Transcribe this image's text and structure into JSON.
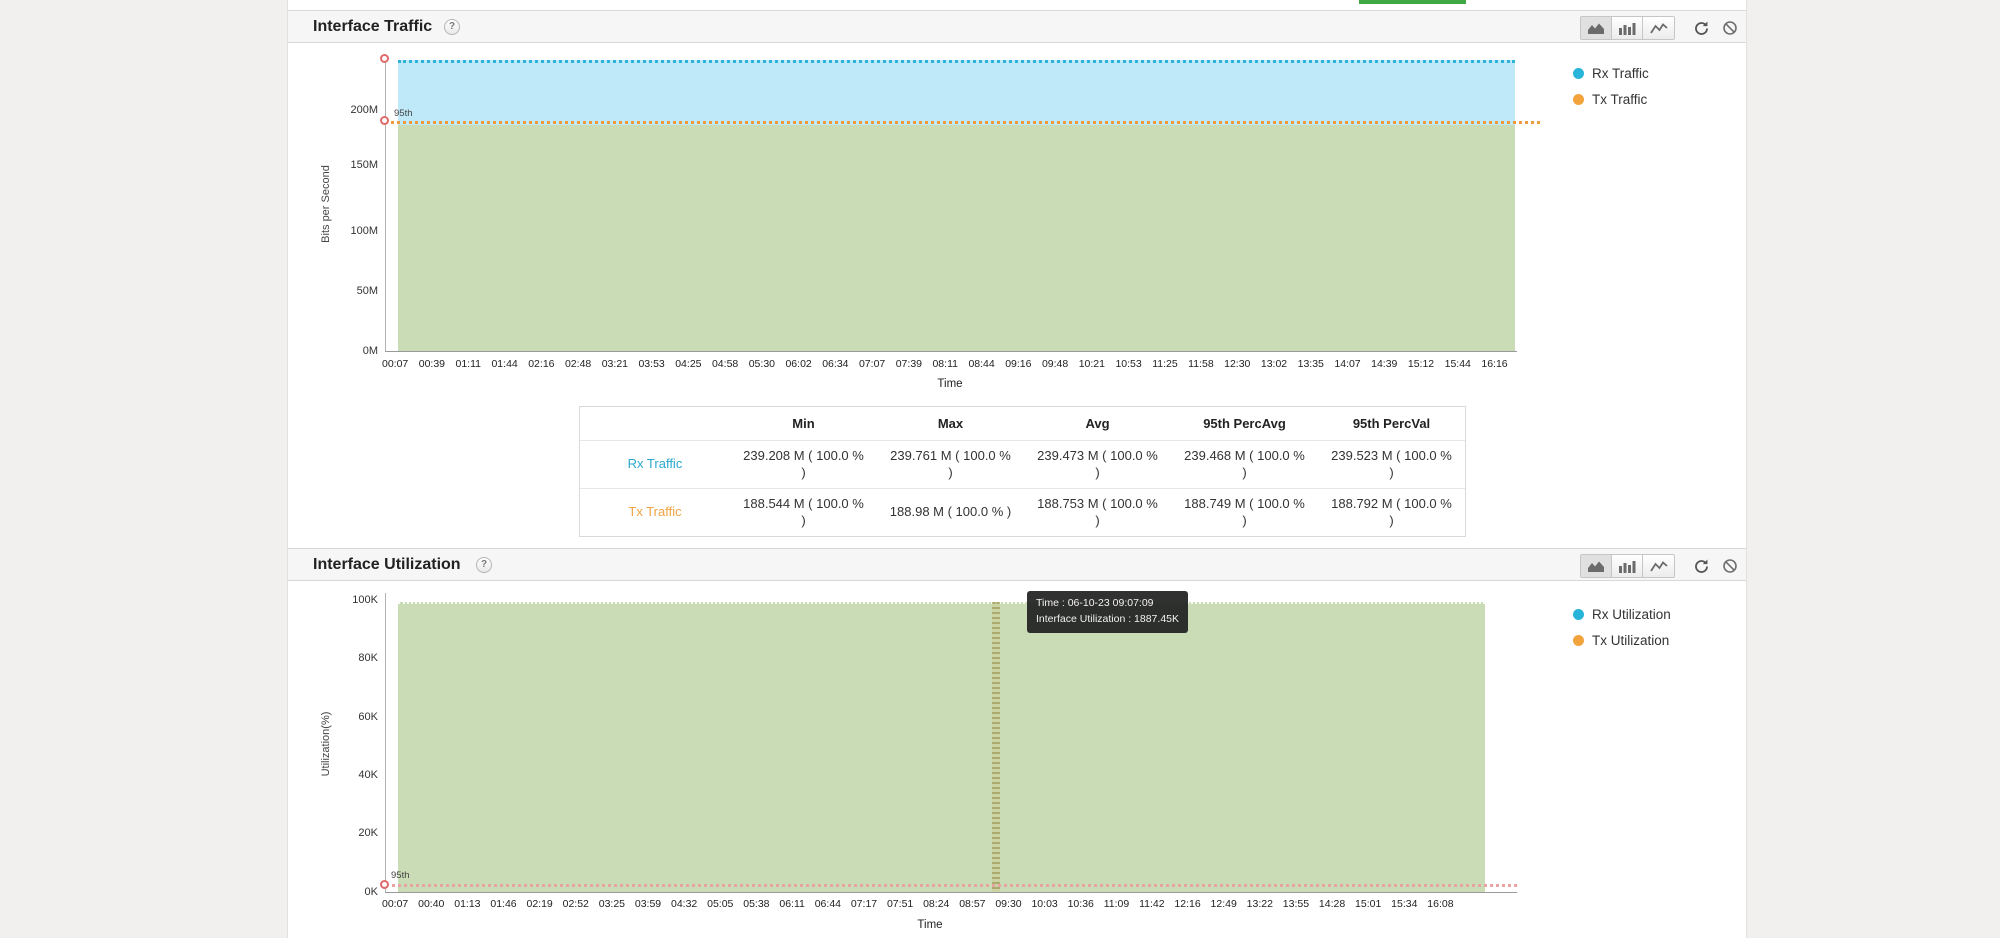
{
  "accent": {
    "top_tab_indicator_color": "#3fa845"
  },
  "toolbar": {
    "icons": [
      "area-chart-icon",
      "bar-chart-icon",
      "line-chart-icon",
      "refresh-icon",
      "cancel-icon"
    ],
    "selected_chart_type": "area"
  },
  "traffic_panel": {
    "title": "Interface Traffic",
    "help_label": "?",
    "percentile_label": "95th",
    "legend": [
      {
        "label": "Rx Traffic",
        "color": "#29b5da"
      },
      {
        "label": "Tx Traffic",
        "color": "#f2a33c"
      }
    ],
    "chart_data": {
      "type": "area",
      "title": "Interface Traffic",
      "xlabel": "Time",
      "ylabel": "Bits per Second",
      "y_ticks": [
        "200M",
        "150M",
        "100M",
        "50M",
        "0M"
      ],
      "ylim": [
        0,
        245000000
      ],
      "x_ticks": [
        "00:07",
        "00:39",
        "01:11",
        "01:44",
        "02:16",
        "02:48",
        "03:21",
        "03:53",
        "04:25",
        "04:58",
        "05:30",
        "06:02",
        "06:34",
        "07:07",
        "07:39",
        "08:11",
        "08:44",
        "09:16",
        "09:48",
        "10:21",
        "10:53",
        "11:25",
        "11:58",
        "12:30",
        "13:02",
        "13:35",
        "14:07",
        "14:39",
        "15:12",
        "15:44",
        "16:16"
      ],
      "series": [
        {
          "name": "Rx Traffic",
          "color": "#29b5da",
          "shape": "flat",
          "approx_value": "239.47M bps"
        },
        {
          "name": "Tx Traffic",
          "color": "#f2a33c",
          "shape": "flat",
          "approx_value": "188.75M bps"
        }
      ],
      "percentile_marker": "95th",
      "legend_position": "right",
      "grid": false
    },
    "stats_table": {
      "columns": [
        "",
        "Min",
        "Max",
        "Avg",
        "95th PercAvg",
        "95th PercVal"
      ],
      "rows": [
        {
          "label": "Rx Traffic",
          "values": [
            "239.208 M ( 100.0 % )",
            "239.761 M ( 100.0 % )",
            "239.473 M ( 100.0 % )",
            "239.468 M ( 100.0 % )",
            "239.523 M ( 100.0 % )"
          ]
        },
        {
          "label": "Tx Traffic",
          "values": [
            "188.544 M ( 100.0 % )",
            "188.98 M ( 100.0 % )",
            "188.753 M ( 100.0 % )",
            "188.749 M ( 100.0 % )",
            "188.792 M ( 100.0 % )"
          ]
        }
      ]
    }
  },
  "utilization_panel": {
    "title": "Interface Utilization",
    "help_label": "?",
    "percentile_label": "95th",
    "legend": [
      {
        "label": "Rx Utilization",
        "color": "#29b5da"
      },
      {
        "label": "Tx Utilization",
        "color": "#f2a33c"
      }
    ],
    "tooltip": {
      "time_line": "Time : 06-10-23 09:07:09",
      "value_line": "Interface Utilization : 1887.45K"
    },
    "chart_data": {
      "type": "area",
      "title": "Interface Utilization",
      "xlabel": "Time",
      "ylabel": "Utilization(%)",
      "y_ticks": [
        "100K",
        "80K",
        "60K",
        "40K",
        "20K",
        "0K"
      ],
      "x_ticks": [
        "00:07",
        "00:40",
        "01:13",
        "01:46",
        "02:19",
        "02:52",
        "03:25",
        "03:59",
        "04:32",
        "05:05",
        "05:38",
        "06:11",
        "06:44",
        "07:17",
        "07:51",
        "08:24",
        "08:57",
        "09:30",
        "10:03",
        "10:36",
        "11:09",
        "11:42",
        "12:16",
        "12:49",
        "13:22",
        "13:55",
        "14:28",
        "15:01",
        "15:34",
        "16:08"
      ],
      "series": [
        {
          "name": "Rx Utilization",
          "color": "#29b5da",
          "shape": "flat",
          "approx_value": "~97K"
        },
        {
          "name": "Tx Utilization",
          "color": "#f2a33c",
          "shape": "flat",
          "approx_value": "~0K"
        }
      ],
      "crosshair_time": "09:07",
      "legend_position": "right",
      "grid": false
    }
  }
}
